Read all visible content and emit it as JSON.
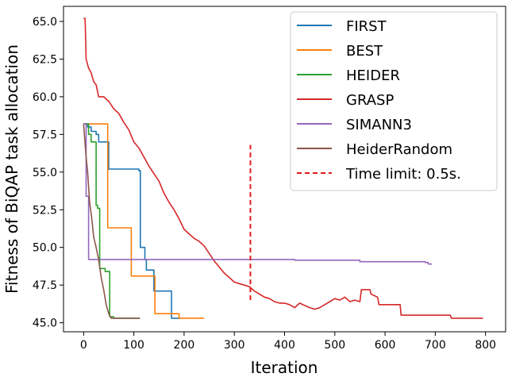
{
  "chart_data": {
    "type": "line",
    "title": "",
    "xlabel": "Iteration",
    "ylabel": "Fitness of BiQAP task allocation",
    "xlim": [
      -40,
      840
    ],
    "ylim": [
      44.4,
      66.0
    ],
    "xticks": [
      0,
      100,
      200,
      300,
      400,
      500,
      600,
      700,
      800
    ],
    "xtick_labels": [
      "0",
      "100",
      "200",
      "300",
      "400",
      "500",
      "600",
      "700",
      "800"
    ],
    "yticks": [
      45.0,
      47.5,
      50.0,
      52.5,
      55.0,
      57.5,
      60.0,
      62.5,
      65.0
    ],
    "ytick_labels": [
      "45.0",
      "47.5",
      "50.0",
      "52.5",
      "55.0",
      "57.5",
      "60.0",
      "62.5",
      "65.0"
    ],
    "grid": false,
    "legend_position": "top-right",
    "series": [
      {
        "name": "FIRST",
        "color": "#1f77b4",
        "step": true,
        "points": [
          [
            0,
            58.2
          ],
          [
            8,
            58.0
          ],
          [
            15,
            57.7
          ],
          [
            25,
            57.5
          ],
          [
            30,
            57.0
          ],
          [
            50,
            55.2
          ],
          [
            110,
            55.1
          ],
          [
            113,
            50.0
          ],
          [
            122,
            49.2
          ],
          [
            125,
            48.5
          ],
          [
            140,
            47.1
          ],
          [
            175,
            45.3
          ],
          [
            193,
            45.3
          ]
        ]
      },
      {
        "name": "BEST",
        "color": "#ff7f0e",
        "step": true,
        "points": [
          [
            0,
            58.2
          ],
          [
            48,
            51.3
          ],
          [
            95,
            48.1
          ],
          [
            142,
            45.6
          ],
          [
            190,
            45.3
          ],
          [
            240,
            45.3
          ]
        ]
      },
      {
        "name": "HEIDER",
        "color": "#2ca02c",
        "step": true,
        "points": [
          [
            0,
            58.2
          ],
          [
            10,
            57.5
          ],
          [
            15,
            57.0
          ],
          [
            25,
            52.8
          ],
          [
            28,
            52.6
          ],
          [
            32,
            48.6
          ],
          [
            43,
            48.4
          ],
          [
            52,
            45.4
          ],
          [
            60,
            45.3
          ],
          [
            112,
            45.3
          ]
        ]
      },
      {
        "name": "GRASP",
        "color": "#d62728",
        "step": false,
        "points": [
          [
            0,
            65.2
          ],
          [
            3,
            65.2
          ],
          [
            5,
            62.5
          ],
          [
            10,
            61.9
          ],
          [
            15,
            61.6
          ],
          [
            20,
            61.0
          ],
          [
            25,
            60.8
          ],
          [
            30,
            60.0
          ],
          [
            40,
            60.0
          ],
          [
            50,
            59.7
          ],
          [
            60,
            59.2
          ],
          [
            70,
            58.9
          ],
          [
            80,
            58.3
          ],
          [
            90,
            57.8
          ],
          [
            100,
            57.0
          ],
          [
            110,
            56.6
          ],
          [
            120,
            56.0
          ],
          [
            130,
            55.4
          ],
          [
            140,
            54.9
          ],
          [
            150,
            54.4
          ],
          [
            160,
            53.6
          ],
          [
            170,
            53.0
          ],
          [
            180,
            52.5
          ],
          [
            190,
            51.9
          ],
          [
            200,
            51.2
          ],
          [
            210,
            50.9
          ],
          [
            220,
            50.6
          ],
          [
            230,
            50.4
          ],
          [
            240,
            50.1
          ],
          [
            250,
            49.6
          ],
          [
            260,
            49.1
          ],
          [
            270,
            48.7
          ],
          [
            280,
            48.3
          ],
          [
            290,
            48.0
          ],
          [
            300,
            47.7
          ],
          [
            310,
            47.6
          ],
          [
            320,
            47.5
          ],
          [
            330,
            47.4
          ],
          [
            340,
            47.1
          ],
          [
            350,
            46.9
          ],
          [
            360,
            46.7
          ],
          [
            370,
            46.6
          ],
          [
            380,
            46.4
          ],
          [
            390,
            46.3
          ],
          [
            400,
            46.3
          ],
          [
            410,
            46.2
          ],
          [
            420,
            46.0
          ],
          [
            430,
            46.3
          ],
          [
            450,
            46.0
          ],
          [
            460,
            45.9
          ],
          [
            470,
            46.0
          ],
          [
            480,
            46.2
          ],
          [
            490,
            46.4
          ],
          [
            500,
            46.6
          ],
          [
            510,
            46.5
          ],
          [
            520,
            46.7
          ],
          [
            530,
            46.4
          ],
          [
            540,
            46.5
          ],
          [
            550,
            46.4
          ],
          [
            553,
            47.2
          ],
          [
            570,
            47.2
          ],
          [
            572,
            46.9
          ],
          [
            585,
            46.7
          ],
          [
            588,
            46.2
          ],
          [
            630,
            46.2
          ],
          [
            632,
            45.5
          ],
          [
            730,
            45.5
          ],
          [
            732,
            45.3
          ],
          [
            795,
            45.3
          ]
        ]
      },
      {
        "name": "SIMANN3",
        "color": "#9467bd",
        "step": true,
        "points": [
          [
            0,
            58.2
          ],
          [
            5,
            53.4
          ],
          [
            10,
            49.2
          ],
          [
            300,
            49.2
          ],
          [
            420,
            49.15
          ],
          [
            550,
            49.05
          ],
          [
            680,
            49.0
          ],
          [
            686,
            48.9
          ],
          [
            692,
            48.85
          ]
        ]
      },
      {
        "name": "HeiderRandom",
        "color": "#8c564b",
        "step": false,
        "points": [
          [
            0,
            58.2
          ],
          [
            5,
            56.0
          ],
          [
            8,
            55.0
          ],
          [
            12,
            53.0
          ],
          [
            16,
            52.0
          ],
          [
            20,
            50.7
          ],
          [
            25,
            50.0
          ],
          [
            30,
            49.2
          ],
          [
            35,
            48.0
          ],
          [
            40,
            47.2
          ],
          [
            45,
            46.2
          ],
          [
            50,
            45.6
          ],
          [
            55,
            45.3
          ],
          [
            60,
            45.3
          ],
          [
            112,
            45.3
          ]
        ]
      },
      {
        "name": "Time limit: 0.5s.",
        "color": "#e31a1c",
        "dashed": true,
        "points": [
          [
            332,
            46.5
          ],
          [
            332,
            56.8
          ]
        ]
      }
    ]
  }
}
